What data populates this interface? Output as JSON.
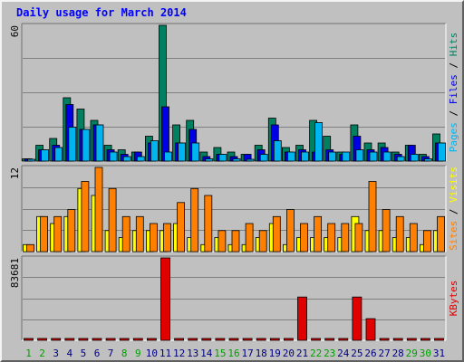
{
  "chart_data": {
    "type": "bar",
    "title": "Daily usage for March 2014",
    "days": [
      "1",
      "2",
      "3",
      "4",
      "5",
      "6",
      "7",
      "8",
      "9",
      "10",
      "11",
      "12",
      "13",
      "14",
      "15",
      "16",
      "17",
      "18",
      "19",
      "20",
      "21",
      "22",
      "23",
      "24",
      "25",
      "26",
      "27",
      "28",
      "29",
      "30",
      "31"
    ],
    "weekend_days": [
      "1",
      "2",
      "8",
      "9",
      "15",
      "16",
      "22",
      "23",
      "29",
      "30"
    ],
    "panels": [
      {
        "name": "hits-files-pages",
        "ymax": 60,
        "ymax_label": "60",
        "axis_label_parts": [
          {
            "text": "Pages",
            "color": "#00b4f0"
          },
          {
            "text": " / ",
            "color": "#000000"
          },
          {
            "text": "Files",
            "color": "#0000e6"
          },
          {
            "text": " / ",
            "color": "#000000"
          },
          {
            "text": "Hits",
            "color": "#008060"
          }
        ],
        "series": [
          {
            "name": "Hits",
            "color": "#008060",
            "values": [
              1,
              7,
              10,
              28,
              23,
              18,
              7,
              5,
              4,
              11,
              60,
              16,
              18,
              4,
              6,
              4,
              3,
              7,
              19,
              6,
              7,
              18,
              11,
              4,
              16,
              8,
              8,
              4,
              7,
              3,
              12
            ]
          },
          {
            "name": "Files",
            "color": "#0000e6",
            "values": [
              1,
              5,
              7,
              25,
              14,
              16,
              5,
              3,
              4,
              8,
              24,
              8,
              14,
              2,
              3,
              2,
              3,
              5,
              16,
              4,
              5,
              4,
              5,
              3,
              11,
              5,
              6,
              3,
              7,
              2,
              8
            ]
          },
          {
            "name": "Pages",
            "color": "#00b4f0",
            "values": [
              0,
              5,
              6,
              15,
              14,
              16,
              4,
              2,
              2,
              9,
              4,
              8,
              8,
              1,
              3,
              1,
              0,
              3,
              9,
              4,
              4,
              17,
              4,
              4,
              5,
              4,
              4,
              2,
              3,
              1,
              8
            ]
          }
        ]
      },
      {
        "name": "visits-sites",
        "ymax": 12,
        "ymax_label": "12",
        "axis_label_parts": [
          {
            "text": "Sites",
            "color": "#ff8000"
          },
          {
            "text": " / ",
            "color": "#000000"
          },
          {
            "text": "Visits",
            "color": "#ffff00"
          }
        ],
        "series": [
          {
            "name": "Visits",
            "color": "#ffff00",
            "values": [
              1,
              5,
              4,
              5,
              9,
              8,
              3,
              2,
              3,
              3,
              3,
              4,
              2,
              1,
              2,
              1,
              1,
              2,
              4,
              1,
              2,
              2,
              2,
              2,
              5,
              3,
              3,
              2,
              2,
              1,
              3
            ]
          },
          {
            "name": "Sites",
            "color": "#ff8000",
            "values": [
              1,
              5,
              5,
              6,
              10,
              12,
              9,
              5,
              5,
              4,
              4,
              7,
              9,
              8,
              3,
              3,
              4,
              3,
              5,
              6,
              4,
              5,
              4,
              4,
              4,
              10,
              6,
              5,
              4,
              3,
              5
            ]
          }
        ]
      },
      {
        "name": "kbytes",
        "ymax": 83681,
        "ymax_label": "83681",
        "axis_label_parts": [
          {
            "text": "KBytes",
            "color": "#e00000"
          }
        ],
        "series": [
          {
            "name": "KBytes",
            "color": "#e00000",
            "values": [
              500,
              500,
              500,
              500,
              500,
              500,
              500,
              500,
              500,
              500,
              83681,
              500,
              500,
              500,
              500,
              500,
              500,
              500,
              500,
              500,
              44000,
              500,
              500,
              500,
              44000,
              22000,
              500,
              500,
              500,
              500,
              500
            ]
          }
        ]
      }
    ]
  },
  "colors": {
    "background": "#c0c0c0",
    "title_text": "#0000ff",
    "weekday_label": "#000080",
    "weekend_label": "#00a000"
  }
}
